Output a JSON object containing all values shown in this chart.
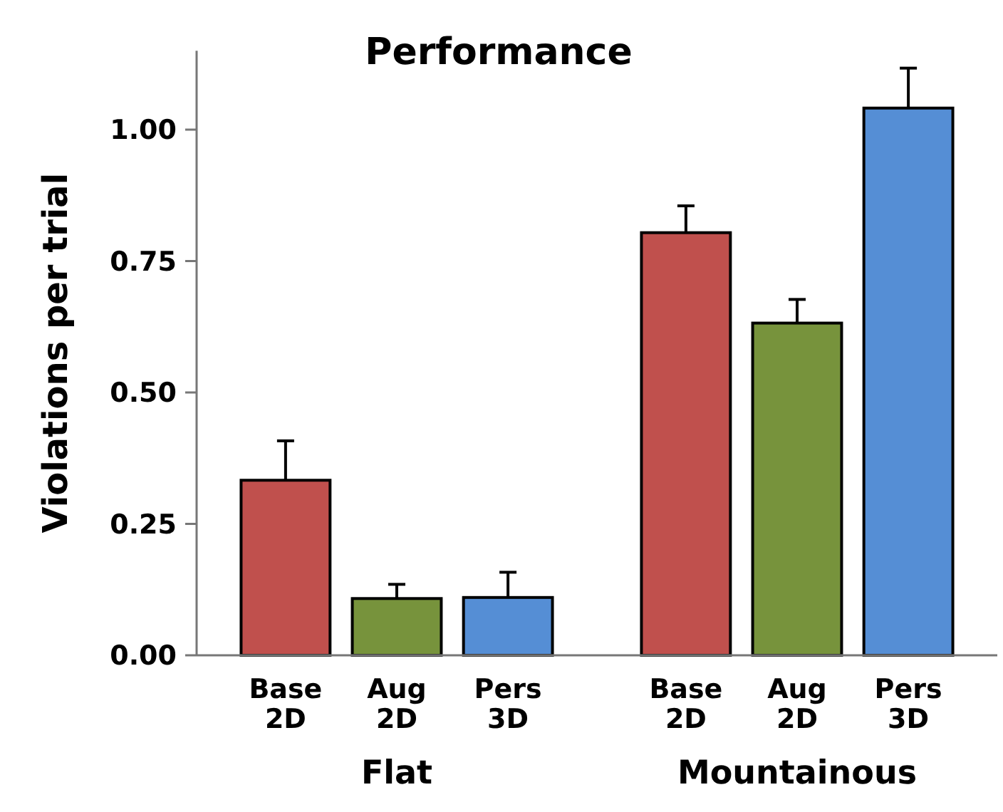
{
  "chart_data": {
    "type": "bar",
    "title": "Performance",
    "ylabel": "Violations per trial",
    "categories": [
      "Base 2D",
      "Aug 2D",
      "Pers 3D",
      "Base 2D",
      "Aug 2D",
      "Pers 3D"
    ],
    "values": [
      0.333,
      0.108,
      0.11,
      0.804,
      0.632,
      1.041
    ],
    "errors": [
      0.075,
      0.027,
      0.048,
      0.051,
      0.045,
      0.076
    ],
    "colors": [
      "#c0504d",
      "#77933c",
      "#558ed5",
      "#c0504d",
      "#77933c",
      "#558ed5"
    ],
    "annotations": [
      "Flat",
      "Mountainous"
    ],
    "ylim": [
      0,
      1.15
    ],
    "yticks": [
      {
        "value": 0,
        "label": "0.00"
      },
      {
        "value": 0.25,
        "label": "0.25"
      },
      {
        "value": 0.5,
        "label": "0.50"
      },
      {
        "value": 0.75,
        "label": "0.75"
      },
      {
        "value": 1,
        "label": "1.00"
      }
    ],
    "grid": false
  }
}
